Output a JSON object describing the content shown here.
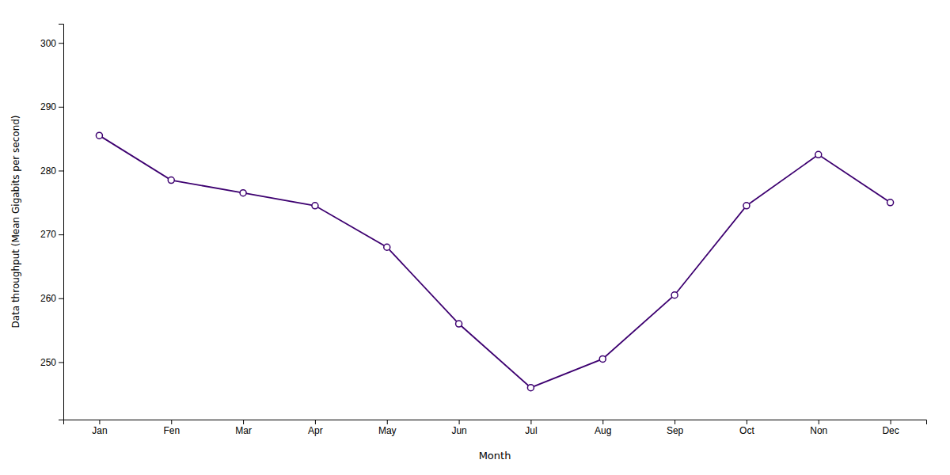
{
  "chart_data": {
    "type": "line",
    "categories": [
      "Jan",
      "Fen",
      "Mar",
      "Apr",
      "May",
      "Jun",
      "Jul",
      "Aug",
      "Sep",
      "Oct",
      "Non",
      "Dec"
    ],
    "values": [
      285.5,
      278.5,
      276.5,
      274.5,
      268.0,
      256.0,
      246.0,
      250.5,
      260.5,
      274.5,
      282.5,
      275.0
    ],
    "color": "#3d0070",
    "marker": "circle",
    "xlabel": "Month",
    "ylabel": "Data throughput (Mean Gigabits per second)",
    "ylim": [
      241,
      303
    ],
    "yticks": [
      250,
      260,
      270,
      280,
      290,
      300
    ],
    "grid": false
  }
}
